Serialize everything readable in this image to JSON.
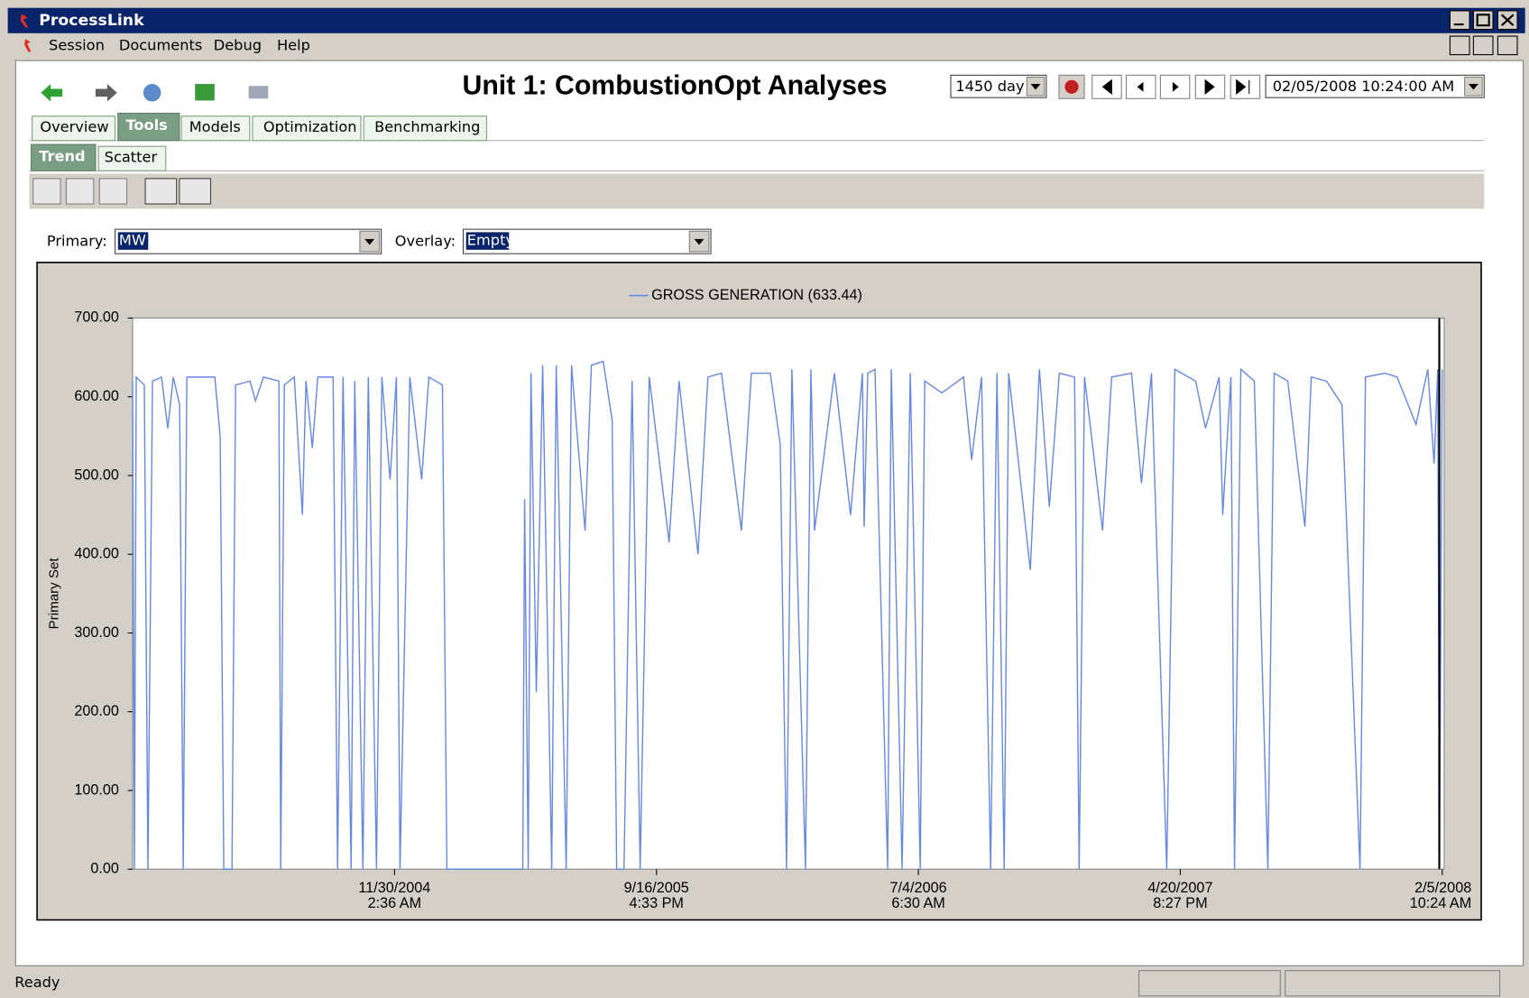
{
  "ui": {
    "window_title": "ProcessLink",
    "menu": [
      "Session",
      "Documents",
      "Debug",
      "Help"
    ],
    "page_title": "Unit 1: CombustionOpt Analyses",
    "period": "1450 day",
    "datetime": "02/05/2008 10:24:00 AM",
    "tabs": [
      "Overview",
      "Tools",
      "Models",
      "Optimization",
      "Benchmarking"
    ],
    "subtabs": [
      "Trend",
      "Scatter"
    ],
    "primary_label": "Primary:",
    "primary_value": "MW",
    "overlay_label": "Overlay:",
    "overlay_value": "Empty",
    "status": "Ready"
  },
  "chart_data": {
    "type": "line",
    "ylabel": "Primary Set",
    "xlim": [
      0,
      1450
    ],
    "ylim": [
      0,
      700
    ],
    "yticks": [
      {
        "value": 0,
        "label": "0.00"
      },
      {
        "value": 100,
        "label": "100.00"
      },
      {
        "value": 200,
        "label": "200.00"
      },
      {
        "value": 300,
        "label": "300.00"
      },
      {
        "value": 400,
        "label": "400.00"
      },
      {
        "value": 500,
        "label": "500.00"
      },
      {
        "value": 600,
        "label": "600.00"
      },
      {
        "value": 700,
        "label": "700.00"
      }
    ],
    "xticks": [
      {
        "value": 290,
        "label": [
          "11/30/2004",
          "2:36 AM"
        ]
      },
      {
        "value": 580,
        "label": [
          "9/16/2005",
          "4:33 PM"
        ]
      },
      {
        "value": 870,
        "label": [
          "7/4/2006",
          "6:30 AM"
        ]
      },
      {
        "value": 1160,
        "label": [
          "4/20/2007",
          "8:27 PM"
        ]
      },
      {
        "value": 1450,
        "label": [
          "2/5/2008",
          "10:24 AM"
        ]
      }
    ],
    "series": [
      {
        "name": "GROSS GENERATION (633.44)",
        "color": "#6688e0",
        "x": [
          0,
          2,
          4,
          13,
          17,
          22,
          32,
          39,
          45,
          52,
          56,
          60,
          91,
          97,
          101,
          110,
          114,
          130,
          136,
          145,
          162,
          164,
          168,
          179,
          188,
          192,
          199,
          205,
          222,
          227,
          233,
          242,
          246,
          255,
          261,
          270,
          276,
          285,
          292,
          296,
          307,
          320,
          328,
          343,
          348,
          432,
          434,
          438,
          441,
          447,
          454,
          464,
          469,
          480,
          486,
          501,
          508,
          521,
          531,
          536,
          544,
          553,
          562,
          572,
          594,
          605,
          626,
          637,
          652,
          674,
          685,
          706,
          717,
          724,
          730,
          745,
          751,
          755,
          777,
          795,
          808,
          810,
          814,
          822,
          836,
          840,
          852,
          861,
          872,
          877,
          896,
          920,
          929,
          940,
          950,
          957,
          965,
          970,
          994,
          1004,
          1015,
          1026,
          1043,
          1048,
          1054,
          1074,
          1084,
          1106,
          1117,
          1128,
          1145,
          1154,
          1177,
          1188,
          1203,
          1207,
          1216,
          1220,
          1227,
          1242,
          1257,
          1264,
          1279,
          1298,
          1305,
          1322,
          1339,
          1359,
          1365,
          1387,
          1400,
          1421,
          1434,
          1441,
          1445,
          1447,
          1450
        ],
        "values": [
          620,
          0,
          625,
          615,
          0,
          620,
          625,
          560,
          625,
          590,
          0,
          625,
          625,
          550,
          0,
          0,
          615,
          620,
          595,
          625,
          620,
          0,
          615,
          625,
          450,
          620,
          535,
          625,
          625,
          0,
          625,
          0,
          620,
          0,
          625,
          0,
          625,
          495,
          625,
          0,
          625,
          495,
          625,
          615,
          0,
          0,
          470,
          0,
          630,
          225,
          640,
          0,
          640,
          0,
          640,
          430,
          640,
          645,
          570,
          0,
          0,
          620,
          0,
          625,
          415,
          620,
          400,
          625,
          630,
          430,
          630,
          630,
          540,
          0,
          635,
          0,
          635,
          430,
          630,
          450,
          630,
          435,
          630,
          635,
          0,
          635,
          0,
          630,
          0,
          620,
          605,
          625,
          520,
          625,
          0,
          630,
          0,
          630,
          380,
          635,
          460,
          630,
          625,
          0,
          625,
          430,
          625,
          630,
          490,
          630,
          0,
          635,
          620,
          560,
          625,
          450,
          625,
          0,
          635,
          620,
          0,
          630,
          620,
          435,
          625,
          620,
          590,
          0,
          625,
          630,
          625,
          565,
          635,
          515,
          635,
          0,
          635
        ]
      }
    ]
  }
}
